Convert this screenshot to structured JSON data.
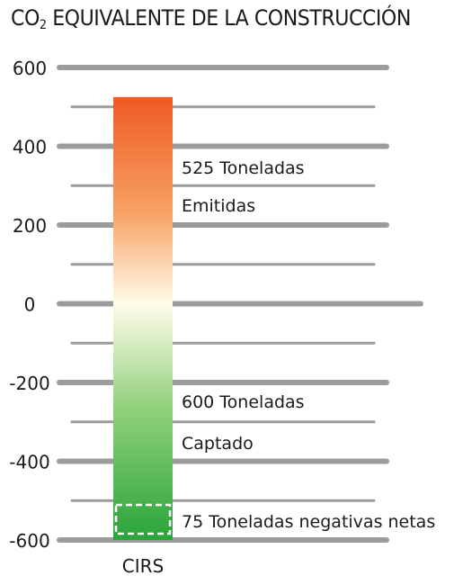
{
  "title_pre": "CO",
  "title_sub": "2",
  "title_post": " EQUIVALENTE DE LA CONSTRUCCIÓN",
  "chart_data": {
    "type": "bar",
    "categories": [
      "CIRS"
    ],
    "series": [
      {
        "name": "Emitidas",
        "values": [
          525
        ]
      },
      {
        "name": "Captado",
        "values": [
          -600
        ]
      }
    ],
    "net_value": -75,
    "ylim": [
      -600,
      600
    ],
    "yticks": [
      "600",
      "400",
      "200",
      "0",
      "-200",
      "-400",
      "-600"
    ],
    "ytick_values": [
      600,
      400,
      200,
      0,
      -200,
      -400,
      -600
    ],
    "minor_gridlines": [
      500,
      300,
      100,
      -100,
      -300,
      -500
    ],
    "grid": true,
    "annotations": [
      {
        "lines": [
          "525 Toneladas",
          "Emitidas"
        ],
        "anchor": 400
      },
      {
        "lines": [
          "600 Toneladas",
          "Captado"
        ],
        "anchor": -200
      },
      {
        "lines": [
          "75 Toneladas negativas netas"
        ],
        "anchor": -540
      }
    ],
    "colors": {
      "top": "#ee5a24",
      "mid_orange": "#f7a062",
      "zero": "#fffbea",
      "low_green": "#8fd07a",
      "bottom": "#2aa43a",
      "grid": "#9c9c9c"
    }
  }
}
